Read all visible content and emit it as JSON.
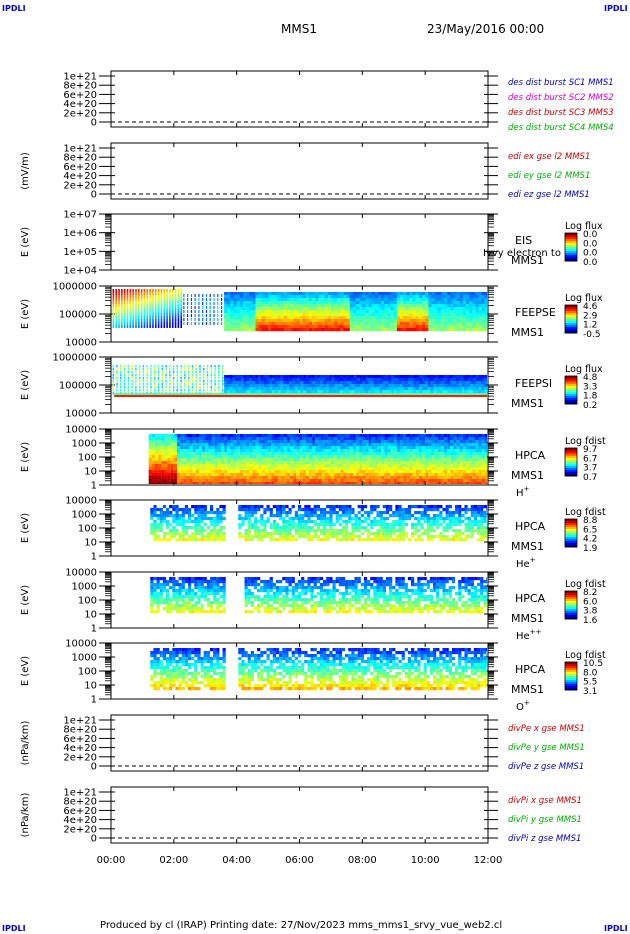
{
  "corners": {
    "tl": "IPDLI",
    "tr": "IPDLI",
    "bl": "IPDLI",
    "br": "IPDLI"
  },
  "header": {
    "spacecraft": "MMS1",
    "date": "23/May/2016 00:00"
  },
  "footer": {
    "text": "Produced by cl (IRAP)    Printing date: 27/Nov/2023    mms_mms1_srvy_vue_web2.cl"
  },
  "colors": {
    "blue": "#0000cc",
    "magenta": "#cc00cc",
    "red": "#cc0000",
    "green": "#00b000"
  },
  "chart_data": [
    {
      "type": "line",
      "ylabel": "",
      "ylim": [
        0,
        1e+21
      ],
      "yticks": [
        "1e+21",
        "8e+20",
        "6e+20",
        "4e+20",
        "2e+20",
        "0"
      ],
      "legend": [
        {
          "label": "des dist burst SC1 MMS1",
          "color": "#0000cc"
        },
        {
          "label": "des dist burst SC2 MMS2",
          "color": "#cc00cc"
        },
        {
          "label": "des dist burst SC3 MMS3",
          "color": "#cc0000"
        },
        {
          "label": "des dist burst SC4 MMS4",
          "color": "#00b000"
        }
      ]
    },
    {
      "type": "line",
      "ylabel": "(mV/m)",
      "ylim": [
        0,
        1e+21
      ],
      "yticks": [
        "1e+21",
        "8e+20",
        "6e+20",
        "4e+20",
        "2e+20",
        "0"
      ],
      "legend": [
        {
          "label": "edi ex gse l2 MMS1",
          "color": "#cc0000"
        },
        {
          "label": "edi ey gse l2 MMS1",
          "color": "#00b000"
        },
        {
          "label": "edi ez gse l2 MMS1",
          "color": "#0000cc"
        }
      ]
    },
    {
      "type": "heatmap",
      "ylabel": "E (eV)",
      "ylim": [
        10000,
        10000000
      ],
      "scale": "log",
      "yticks": [
        "1e+07",
        "1e+06",
        "1e+05",
        "1e+04"
      ],
      "labels": [
        "EIS",
        "MMS1"
      ],
      "overlay": "Ivvy electron to",
      "cbar": {
        "title": "Log flux",
        "ticks": [
          "0.0",
          "0.0",
          "0.0",
          "0.0"
        ]
      }
    },
    {
      "type": "heatmap",
      "ylabel": "E (eV)",
      "ylim": [
        10000,
        1000000
      ],
      "scale": "log",
      "yticks": [
        "1000000",
        "100000",
        "10000"
      ],
      "labels": [
        "FEEPSE",
        "MMS1"
      ],
      "cbar": {
        "title": "Log flux",
        "ticks": [
          "4.6",
          "2.9",
          "1.2",
          "-0.5"
        ]
      }
    },
    {
      "type": "heatmap",
      "ylabel": "E (eV)",
      "ylim": [
        10000,
        1000000
      ],
      "scale": "log",
      "yticks": [
        "1000000",
        "100000",
        "10000"
      ],
      "labels": [
        "FEEPSI",
        "MMS1"
      ],
      "cbar": {
        "title": "Log flux",
        "ticks": [
          "4.8",
          "3.3",
          "1.8",
          "0.2"
        ]
      }
    },
    {
      "type": "heatmap",
      "ylabel": "E (eV)",
      "ylim": [
        1,
        10000
      ],
      "scale": "log",
      "yticks": [
        "10000",
        "1000",
        "100",
        "10",
        "1"
      ],
      "labels": [
        "HPCA",
        "MMS1"
      ],
      "species": "H",
      "species_sup": "+",
      "cbar": {
        "title": "Log fdist",
        "ticks": [
          "9.7",
          "6.7",
          "3.7",
          "0.7"
        ]
      }
    },
    {
      "type": "heatmap",
      "ylabel": "E (eV)",
      "ylim": [
        1,
        10000
      ],
      "scale": "log",
      "yticks": [
        "10000",
        "1000",
        "100",
        "10",
        "1"
      ],
      "labels": [
        "HPCA",
        "MMS1"
      ],
      "species": "He",
      "species_sup": "+",
      "cbar": {
        "title": "Log fdist",
        "ticks": [
          "8.8",
          "6.5",
          "4.2",
          "1.9"
        ]
      }
    },
    {
      "type": "heatmap",
      "ylabel": "E (eV)",
      "ylim": [
        1,
        10000
      ],
      "scale": "log",
      "yticks": [
        "10000",
        "1000",
        "100",
        "10",
        "1"
      ],
      "labels": [
        "HPCA",
        "MMS1"
      ],
      "species": "He",
      "species_sup": "++",
      "cbar": {
        "title": "Log fdist",
        "ticks": [
          "8.2",
          "6.0",
          "3.8",
          "1.6"
        ]
      }
    },
    {
      "type": "heatmap",
      "ylabel": "E (eV)",
      "ylim": [
        1,
        10000
      ],
      "scale": "log",
      "yticks": [
        "10000",
        "1000",
        "100",
        "10",
        "1"
      ],
      "labels": [
        "HPCA",
        "MMS1"
      ],
      "species": "O",
      "species_sup": "+",
      "cbar": {
        "title": "Log fdist",
        "ticks": [
          "10.5",
          "8.0",
          "5.5",
          "3.1"
        ]
      }
    },
    {
      "type": "line",
      "ylabel": "(nPa/km)",
      "ylim": [
        0,
        1e+21
      ],
      "yticks": [
        "1e+21",
        "8e+20",
        "6e+20",
        "4e+20",
        "2e+20",
        "0"
      ],
      "legend": [
        {
          "label": "divPe x gse MMS1",
          "color": "#cc0000"
        },
        {
          "label": "divPe y gse MMS1",
          "color": "#00b000"
        },
        {
          "label": "divPe z gse MMS1",
          "color": "#0000cc"
        }
      ]
    },
    {
      "type": "line",
      "ylabel": "(nPa/km)",
      "ylim": [
        0,
        1e+21
      ],
      "yticks": [
        "1e+21",
        "8e+20",
        "6e+20",
        "4e+20",
        "2e+20",
        "0"
      ],
      "legend": [
        {
          "label": "divPi x gse MMS1",
          "color": "#cc0000"
        },
        {
          "label": "divPi y gse MMS1",
          "color": "#00b000"
        },
        {
          "label": "divPi z gse MMS1",
          "color": "#0000cc"
        }
      ]
    }
  ],
  "time_axis": {
    "ticks": [
      "00:00",
      "02:00",
      "04:00",
      "06:00",
      "08:00",
      "10:00",
      "12:00"
    ],
    "xlim": [
      0,
      12
    ]
  }
}
